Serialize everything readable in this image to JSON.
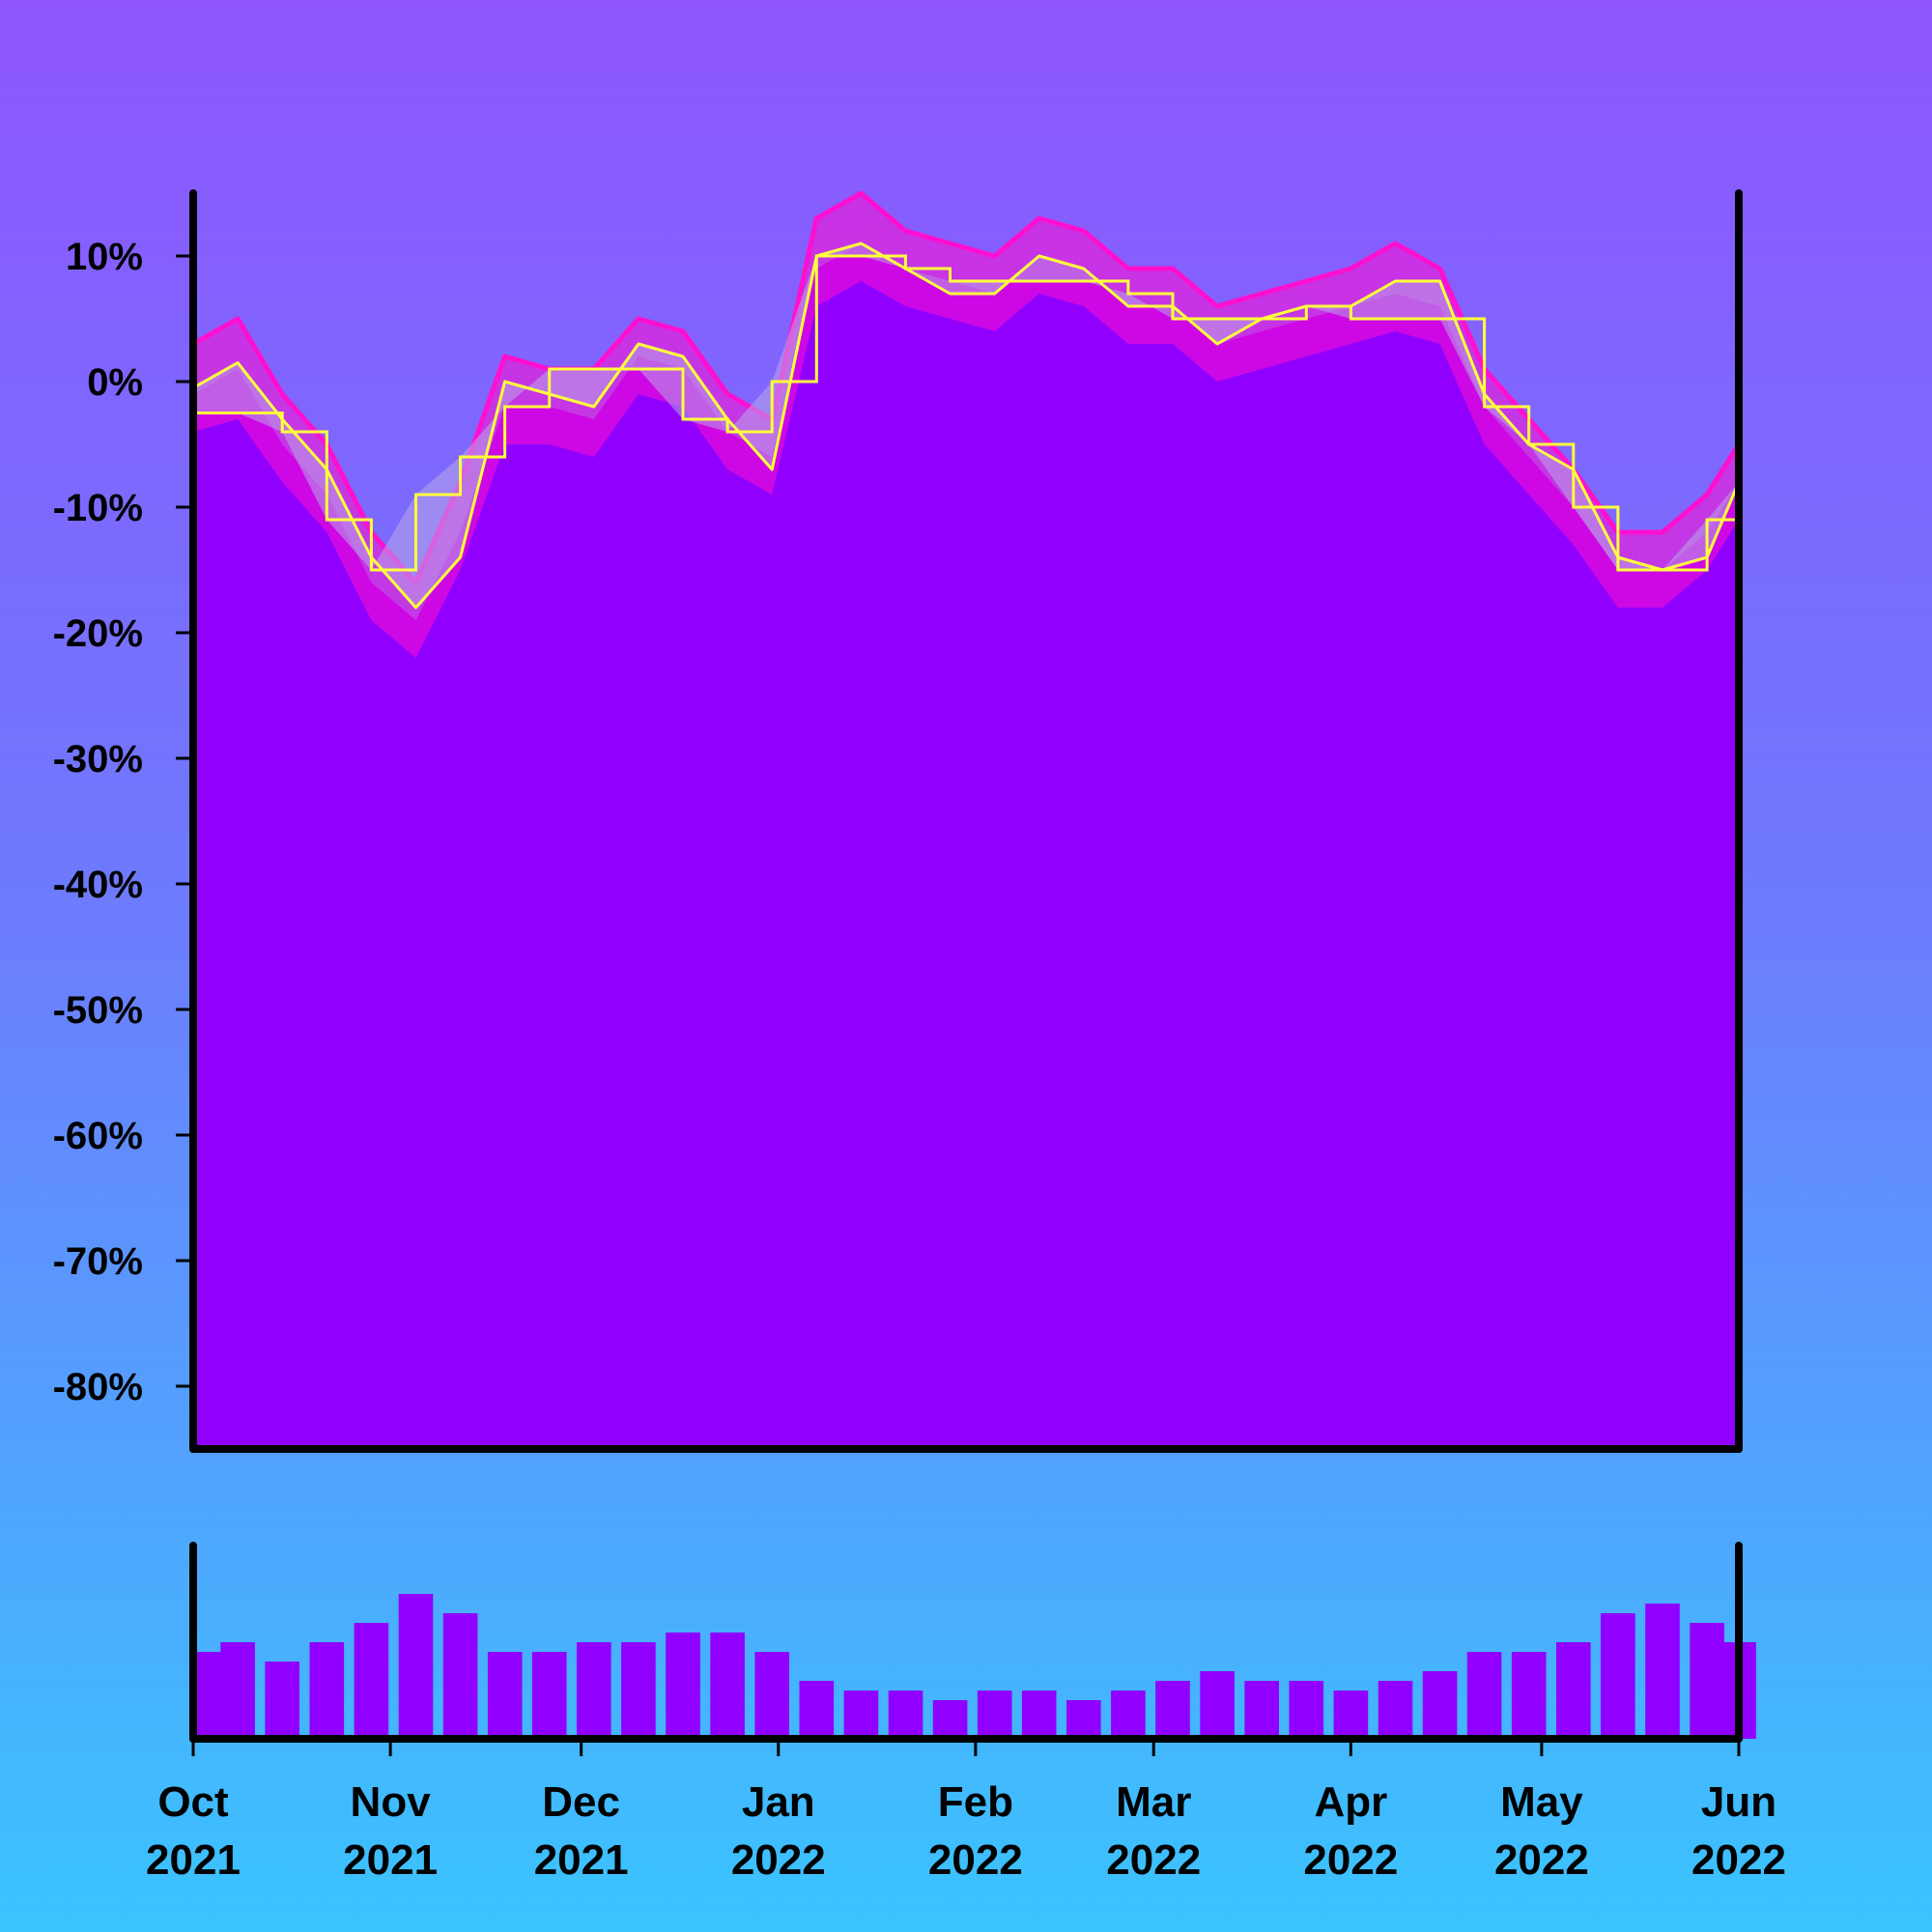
{
  "chart_data": [
    {
      "type": "area",
      "title": "",
      "xlabel": "",
      "ylabel": "",
      "y_unit": "%",
      "xlim": [
        "2021-10-01",
        "2022-06-01"
      ],
      "ylim": [
        -85,
        15
      ],
      "yticks": [
        10,
        0,
        -10,
        -20,
        -30,
        -40,
        -50,
        -60,
        -70,
        -80
      ],
      "ytick_labels": [
        "10%",
        "0%",
        "-10%",
        "-20%",
        "-30%",
        "-40%",
        "-50%",
        "-60%",
        "-70%",
        "-80%"
      ],
      "xticks": [
        {
          "date": "2021-10-01",
          "month": "Oct",
          "year": "2021"
        },
        {
          "date": "2021-11-01",
          "month": "Nov",
          "year": "2021"
        },
        {
          "date": "2021-12-01",
          "month": "Dec",
          "year": "2021"
        },
        {
          "date": "2022-01-01",
          "month": "Jan",
          "year": "2022"
        },
        {
          "date": "2022-02-01",
          "month": "Feb",
          "year": "2022"
        },
        {
          "date": "2022-03-01",
          "month": "Mar",
          "year": "2022"
        },
        {
          "date": "2022-04-01",
          "month": "Apr",
          "year": "2022"
        },
        {
          "date": "2022-05-01",
          "month": "May",
          "year": "2022"
        },
        {
          "date": "2022-06-01",
          "month": "Jun",
          "year": "2022"
        }
      ],
      "grid": false,
      "legend": "none",
      "colors": {
        "area": "#9100ff",
        "range": "#ff0fd0",
        "lines": "#ffff3c",
        "band_fill": "#b8a6e8"
      },
      "series": [
        {
          "role": "value-area",
          "x": [
            "2021-10-01",
            "2021-10-08",
            "2021-10-15",
            "2021-10-22",
            "2021-10-29",
            "2021-11-05",
            "2021-11-12",
            "2021-11-19",
            "2021-11-26",
            "2021-12-03",
            "2021-12-10",
            "2021-12-17",
            "2021-12-24",
            "2021-12-31",
            "2022-01-07",
            "2022-01-14",
            "2022-01-21",
            "2022-01-28",
            "2022-02-04",
            "2022-02-11",
            "2022-02-18",
            "2022-02-25",
            "2022-03-04",
            "2022-03-11",
            "2022-03-18",
            "2022-03-25",
            "2022-04-01",
            "2022-04-08",
            "2022-04-15",
            "2022-04-22",
            "2022-04-29",
            "2022-05-06",
            "2022-05-13",
            "2022-05-20",
            "2022-05-27",
            "2022-06-01"
          ],
          "values": [
            -1,
            1,
            -5,
            -9,
            -16,
            -19,
            -12,
            -2,
            -2,
            -3,
            2,
            1,
            -4,
            -6,
            9,
            11,
            9,
            8,
            7,
            10,
            9,
            6,
            6,
            3,
            4,
            5,
            6,
            7,
            6,
            -2,
            -6,
            -10,
            -15,
            -15,
            -12,
            -8
          ]
        },
        {
          "role": "range-high",
          "values": [
            3,
            5,
            -1,
            -5,
            -12,
            -16,
            -8,
            2,
            1,
            1,
            5,
            4,
            -1,
            -3,
            13,
            15,
            12,
            11,
            10,
            13,
            12,
            9,
            9,
            6,
            7,
            8,
            9,
            11,
            9,
            1,
            -3,
            -7,
            -12,
            -12,
            -9,
            -5
          ]
        },
        {
          "role": "range-low",
          "values": [
            -4,
            -3,
            -8,
            -12,
            -19,
            -22,
            -15,
            -5,
            -5,
            -6,
            -1,
            -2,
            -7,
            -9,
            6,
            8,
            6,
            5,
            4,
            7,
            6,
            3,
            3,
            0,
            1,
            2,
            3,
            4,
            3,
            -5,
            -9,
            -13,
            -18,
            -18,
            -15,
            -11
          ]
        },
        {
          "role": "moving-average",
          "values": [
            -0.5,
            1.5,
            -3,
            -7,
            -14,
            -18,
            -14,
            0,
            -1,
            -2,
            3,
            2,
            -3,
            -7,
            10,
            11,
            9,
            7,
            7,
            10,
            9,
            6,
            6,
            3,
            5,
            6,
            6,
            8,
            8,
            -1,
            -5,
            -7,
            -14,
            -15,
            -14,
            -8
          ]
        },
        {
          "role": "step-line",
          "values": [
            -2.5,
            -2.5,
            -4,
            -11,
            -15,
            -9,
            -6,
            -2,
            1,
            1,
            1,
            -3,
            -4,
            0,
            10,
            10,
            9,
            8,
            8,
            8,
            8,
            7,
            5,
            5,
            5,
            6,
            5,
            5,
            5,
            -2,
            -5,
            -10,
            -15,
            -15,
            -11,
            -8
          ]
        }
      ]
    },
    {
      "type": "bar",
      "title": "",
      "xlabel": "",
      "ylabel": "",
      "xlim": [
        "2021-10-01",
        "2022-06-01"
      ],
      "ylim": [
        0,
        1
      ],
      "color": "#9100ff",
      "x": [
        "2021-10-01",
        "2021-10-08",
        "2021-10-15",
        "2021-10-22",
        "2021-10-29",
        "2021-11-05",
        "2021-11-12",
        "2021-11-19",
        "2021-11-26",
        "2021-12-03",
        "2021-12-10",
        "2021-12-17",
        "2021-12-24",
        "2021-12-31",
        "2022-01-07",
        "2022-01-14",
        "2022-01-21",
        "2022-01-28",
        "2022-02-04",
        "2022-02-11",
        "2022-02-18",
        "2022-02-25",
        "2022-03-04",
        "2022-03-11",
        "2022-03-18",
        "2022-03-25",
        "2022-04-01",
        "2022-04-08",
        "2022-04-15",
        "2022-04-22",
        "2022-04-29",
        "2022-05-06",
        "2022-05-13",
        "2022-05-20",
        "2022-05-27",
        "2022-06-01"
      ],
      "values": [
        0.45,
        0.5,
        0.4,
        0.5,
        0.6,
        0.75,
        0.65,
        0.45,
        0.45,
        0.5,
        0.5,
        0.55,
        0.55,
        0.45,
        0.3,
        0.25,
        0.25,
        0.2,
        0.25,
        0.25,
        0.2,
        0.25,
        0.3,
        0.35,
        0.3,
        0.3,
        0.25,
        0.3,
        0.35,
        0.45,
        0.45,
        0.5,
        0.65,
        0.7,
        0.6,
        0.5
      ]
    }
  ]
}
